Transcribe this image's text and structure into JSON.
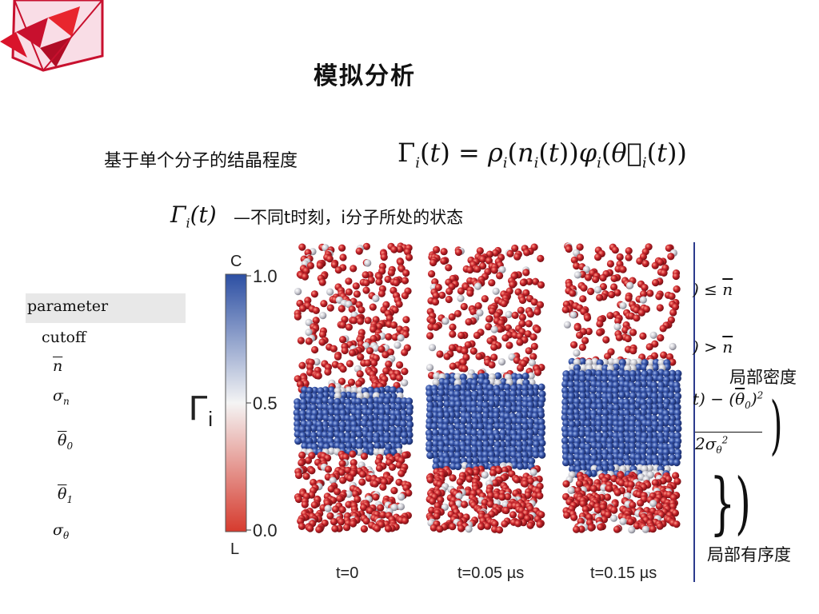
{
  "slide": {
    "title": "模拟分析",
    "description": "基于单个分子的结晶程度",
    "gamma_definition": "—不同t时刻，i分子所处的状态"
  },
  "parameters": {
    "header": "parameter",
    "rows": [
      "cutoff",
      "n",
      "σn",
      "θ0",
      "θ1",
      "σθ"
    ]
  },
  "figure": {
    "colorbar": {
      "top_letter": "C",
      "bottom_letter": "L",
      "ticks": [
        "1.0",
        "0.5",
        "0.0"
      ],
      "symbol": "Γ",
      "symbol_sub": "i",
      "colors": {
        "top": "#2c4fa3",
        "middle": "#f4f4f4",
        "bottom": "#d63b2e"
      }
    },
    "panels": [
      {
        "label": "t=0"
      },
      {
        "label": "t=0.05 µs"
      },
      {
        "label": "t=0.15 µs"
      }
    ],
    "particle_colors": {
      "liquid": "#c8242b",
      "crystal": "#3553a8",
      "interface": "#cfcfd6"
    }
  },
  "right_notes": {
    "density_label": "局部密度",
    "order_label": "局部有序度"
  }
}
